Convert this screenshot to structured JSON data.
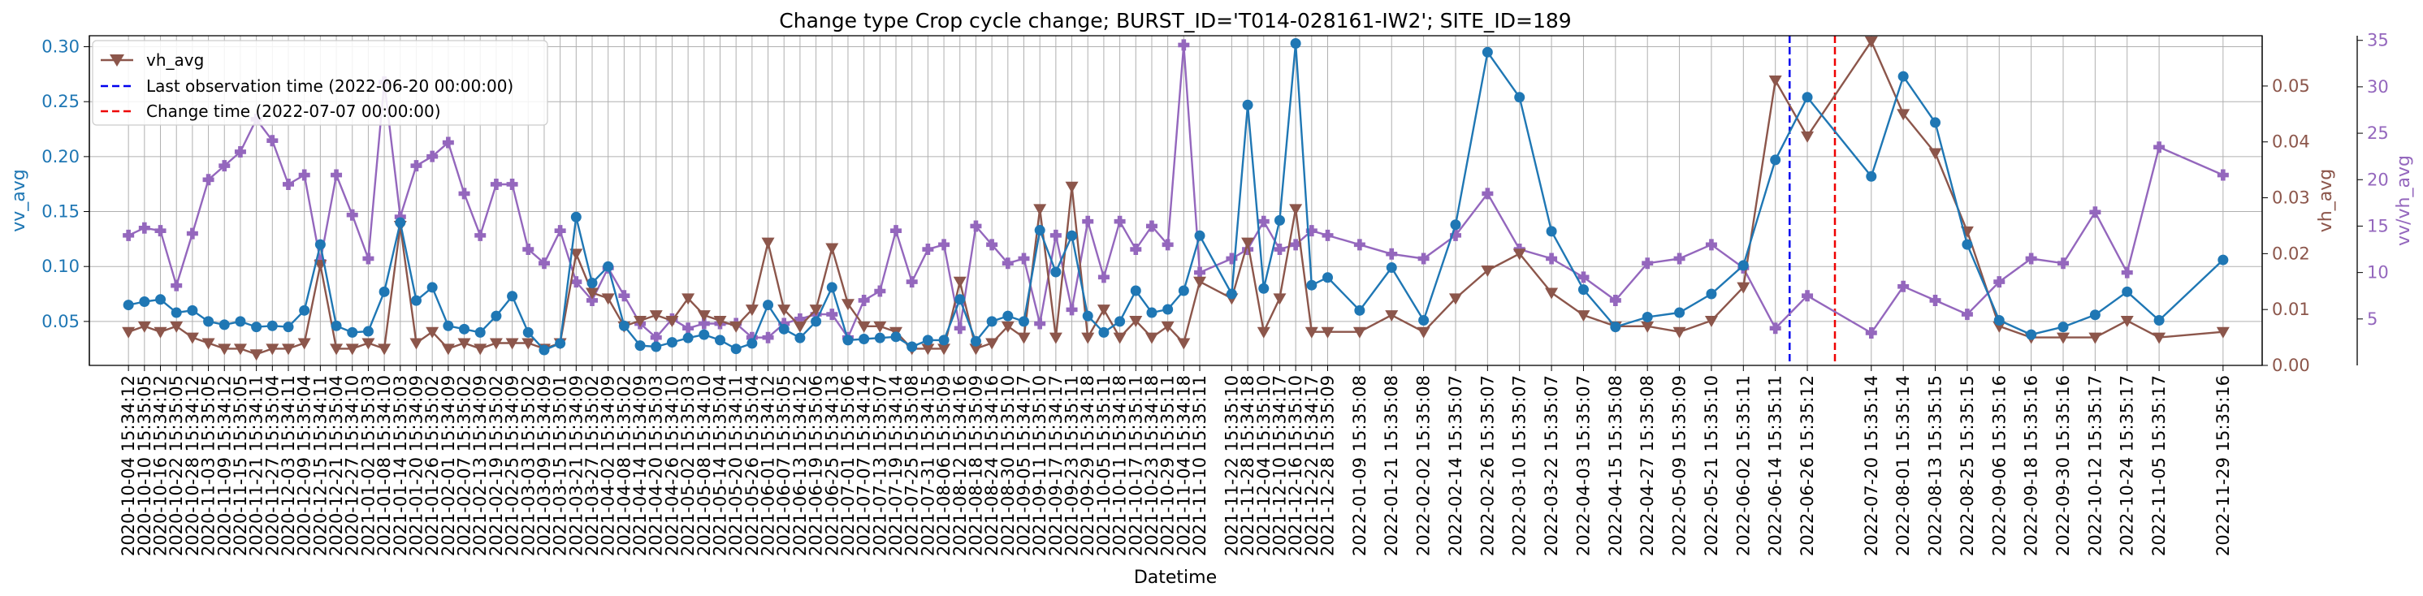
{
  "chart_data": {
    "type": "line",
    "title": "Change type Crop cycle change; BURST_ID='T014-028161-IW2'; SITE_ID=189",
    "xlabel": "Datetime",
    "ylabel_left": "vv_avg",
    "ylabel_right": "vh_avg",
    "ylabel_right2": "vv/vh_avg",
    "ylim_left": [
      0.01,
      0.31
    ],
    "ylim_right": [
      0.0,
      0.059
    ],
    "ylim_right2": [
      0.0,
      35.5
    ],
    "yticks_left": [
      "0.05",
      "0.10",
      "0.15",
      "0.20",
      "0.25",
      "0.30"
    ],
    "yticks_right": [
      "0.00",
      "0.01",
      "0.02",
      "0.03",
      "0.04",
      "0.05"
    ],
    "yticks_right2": [
      "5",
      "10",
      "15",
      "20",
      "25",
      "30",
      "35"
    ],
    "grid": true,
    "legend_position": "top-left",
    "legend": {
      "series_label": "vh_avg",
      "last_obs_label": "Last observation time (2022-06-20 00:00:00)",
      "change_label": "Change time (2022-07-07 00:00:00)"
    },
    "vlines": [
      {
        "x": "2022-06-20",
        "color": "#0000ee",
        "style": "dashed"
      },
      {
        "x": "2022-07-07",
        "color": "#ee0000",
        "style": "dashed"
      }
    ],
    "colors": {
      "vv": "#1f77b4",
      "vh": "#8c564b",
      "ratio": "#9467bd"
    },
    "x": [
      "2020-10-04 15:34:12",
      "2020-10-10 15:35:05",
      "2020-10-16 15:34:12",
      "2020-10-22 15:35:05",
      "2020-10-28 15:34:12",
      "2020-11-03 15:35:05",
      "2020-11-09 15:34:12",
      "2020-11-15 15:35:05",
      "2020-11-21 15:34:11",
      "2020-11-27 15:35:04",
      "2020-12-03 15:34:11",
      "2020-12-09 15:35:04",
      "2020-12-15 15:34:11",
      "2020-12-21 15:35:04",
      "2020-12-27 15:34:10",
      "2021-01-02 15:35:03",
      "2021-01-08 15:34:10",
      "2021-01-14 15:35:03",
      "2021-01-20 15:34:09",
      "2021-01-26 15:35:02",
      "2021-02-01 15:34:09",
      "2021-02-07 15:35:02",
      "2021-02-13 15:34:09",
      "2021-02-19 15:35:02",
      "2021-02-25 15:34:09",
      "2021-03-03 15:35:02",
      "2021-03-09 15:34:09",
      "2021-03-15 15:35:01",
      "2021-03-21 15:34:09",
      "2021-03-27 15:35:02",
      "2021-04-02 15:34:09",
      "2021-04-08 15:35:02",
      "2021-04-14 15:34:09",
      "2021-04-20 15:35:03",
      "2021-04-26 15:34:10",
      "2021-05-02 15:35:03",
      "2021-05-08 15:34:10",
      "2021-05-14 15:35:04",
      "2021-05-20 15:34:11",
      "2021-05-26 15:35:04",
      "2021-06-01 15:34:12",
      "2021-06-07 15:35:05",
      "2021-06-13 15:34:12",
      "2021-06-19 15:35:06",
      "2021-06-25 15:34:13",
      "2021-07-01 15:35:06",
      "2021-07-07 15:34:14",
      "2021-07-13 15:35:07",
      "2021-07-19 15:34:14",
      "2021-07-25 15:35:08",
      "2021-07-31 15:34:15",
      "2021-08-06 15:35:09",
      "2021-08-12 15:34:16",
      "2021-08-18 15:35:09",
      "2021-08-24 15:34:16",
      "2021-08-30 15:35:10",
      "2021-09-05 15:34:17",
      "2021-09-11 15:35:10",
      "2021-09-17 15:34:17",
      "2021-09-23 15:35:11",
      "2021-09-29 15:34:18",
      "2021-10-05 15:35:11",
      "2021-10-11 15:34:18",
      "2021-10-17 15:35:11",
      "2021-10-23 15:34:18",
      "2021-10-29 15:35:11",
      "2021-11-04 15:34:18",
      "2021-11-10 15:35:11",
      "2021-11-22 15:35:10",
      "2021-11-28 15:34:18",
      "2021-12-04 15:35:10",
      "2021-12-10 15:34:17",
      "2021-12-16 15:35:10",
      "2021-12-22 15:34:17",
      "2021-12-28 15:35:09",
      "2022-01-09 15:35:08",
      "2022-01-21 15:35:08",
      "2022-02-02 15:35:08",
      "2022-02-14 15:35:07",
      "2022-02-26 15:35:07",
      "2022-03-10 15:35:07",
      "2022-03-22 15:35:07",
      "2022-04-03 15:35:07",
      "2022-04-15 15:35:08",
      "2022-04-27 15:35:08",
      "2022-05-09 15:35:09",
      "2022-05-21 15:35:10",
      "2022-06-02 15:35:11",
      "2022-06-14 15:35:11",
      "2022-06-26 15:35:12",
      "2022-07-20 15:35:14",
      "2022-08-01 15:35:14",
      "2022-08-13 15:35:15",
      "2022-08-25 15:35:15",
      "2022-09-06 15:35:16",
      "2022-09-18 15:35:16",
      "2022-09-30 15:35:16",
      "2022-10-12 15:35:17",
      "2022-10-24 15:35:17",
      "2022-11-05 15:35:17",
      "2022-11-29 15:35:16"
    ],
    "series": [
      {
        "name": "vv_avg",
        "values": [
          0.065,
          0.068,
          0.07,
          0.058,
          0.06,
          0.05,
          0.047,
          0.05,
          0.045,
          0.046,
          0.045,
          0.06,
          0.12,
          0.046,
          0.04,
          0.041,
          0.077,
          0.14,
          0.069,
          0.081,
          0.046,
          0.043,
          0.04,
          0.055,
          0.073,
          0.04,
          0.024,
          0.03,
          0.145,
          0.085,
          0.1,
          0.046,
          0.028,
          0.027,
          0.031,
          0.035,
          0.038,
          0.033,
          0.025,
          0.03,
          0.065,
          0.043,
          0.035,
          0.05,
          0.081,
          0.033,
          0.034,
          0.035,
          0.036,
          0.027,
          0.033,
          0.033,
          0.07,
          0.032,
          0.05,
          0.055,
          0.05,
          0.133,
          0.095,
          0.128,
          0.055,
          0.04,
          0.05,
          0.078,
          0.058,
          0.061,
          0.078,
          0.128,
          0.075,
          0.247,
          0.08,
          0.142,
          0.303,
          0.083,
          0.09,
          0.06,
          0.099,
          0.051,
          0.138,
          0.295,
          0.254,
          0.132,
          0.079,
          0.045,
          0.054,
          0.058,
          0.075,
          0.101,
          0.197,
          0.254,
          0.182,
          0.273,
          0.231,
          0.12,
          0.051,
          0.038,
          0.045,
          0.056,
          0.077,
          0.051,
          0.106
        ]
      },
      {
        "name": "vh_avg",
        "values": [
          0.006,
          0.007,
          0.006,
          0.007,
          0.005,
          0.004,
          0.003,
          0.003,
          0.002,
          0.003,
          0.003,
          0.004,
          0.018,
          0.003,
          0.003,
          0.004,
          0.003,
          0.025,
          0.004,
          0.006,
          0.003,
          0.004,
          0.003,
          0.004,
          0.004,
          0.004,
          0.003,
          0.004,
          0.02,
          0.013,
          0.012,
          0.007,
          0.008,
          0.009,
          0.008,
          0.012,
          0.009,
          0.008,
          0.007,
          0.01,
          0.022,
          0.01,
          0.007,
          0.01,
          0.021,
          0.011,
          0.007,
          0.007,
          0.006,
          0.003,
          0.003,
          0.003,
          0.015,
          0.003,
          0.004,
          0.007,
          0.005,
          0.028,
          0.005,
          0.032,
          0.005,
          0.01,
          0.005,
          0.008,
          0.005,
          0.007,
          0.004,
          0.015,
          0.012,
          0.022,
          0.006,
          0.012,
          0.028,
          0.006,
          0.006,
          0.006,
          0.009,
          0.006,
          0.012,
          0.017,
          0.02,
          0.013,
          0.009,
          0.007,
          0.007,
          0.006,
          0.008,
          0.014,
          0.051,
          0.041,
          0.058,
          0.045,
          0.038,
          0.024,
          0.007,
          0.005,
          0.005,
          0.005,
          0.008,
          0.005,
          0.006
        ]
      },
      {
        "name": "vv/vh_avg",
        "values": [
          14.0,
          14.8,
          14.5,
          8.6,
          14.2,
          20.0,
          21.5,
          23.0,
          26.5,
          24.2,
          19.5,
          20.5,
          11.2,
          20.5,
          16.2,
          11.5,
          30.5,
          16.0,
          21.5,
          22.5,
          24.0,
          18.5,
          14.0,
          19.5,
          19.5,
          12.5,
          11.0,
          14.5,
          9.0,
          7.0,
          10.5,
          7.5,
          4.5,
          3.0,
          5.0,
          4.0,
          4.5,
          4.5,
          4.5,
          3.0,
          3.0,
          4.5,
          5.0,
          5.5,
          5.5,
          3.0,
          7.0,
          8.0,
          14.5,
          9.0,
          12.5,
          13.0,
          4.0,
          15.0,
          13.0,
          11.0,
          11.5,
          4.5,
          14.0,
          6.0,
          15.5,
          9.5,
          15.5,
          12.5,
          15.0,
          13.0,
          34.5,
          10.0,
          11.5,
          12.5,
          15.5,
          12.5,
          13.0,
          14.5,
          14.0,
          13.0,
          12.0,
          11.5,
          14.0,
          18.5,
          12.5,
          11.5,
          9.5,
          7.0,
          11.0,
          11.5,
          13.0,
          10.5,
          4.0,
          7.5,
          3.5,
          8.5,
          7.0,
          5.5,
          9.0,
          11.5,
          11.0,
          16.5,
          10.0,
          23.5,
          20.5
        ]
      }
    ]
  }
}
